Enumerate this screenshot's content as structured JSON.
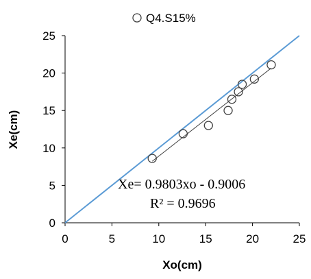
{
  "chart_data": {
    "type": "scatter",
    "xlabel": "Xo(cm)",
    "ylabel": "Xe(cm)",
    "xlim": [
      0,
      25
    ],
    "ylim": [
      0,
      25
    ],
    "x_ticks": [
      "0",
      "5",
      "10",
      "15",
      "20",
      "25"
    ],
    "y_ticks": [
      "0",
      "5",
      "10",
      "15",
      "20",
      "25"
    ],
    "grid": false,
    "legend_position": "top-center",
    "series": [
      {
        "name": "Q4.S15%",
        "marker": "open-circle",
        "color": "#404040",
        "x": [
          9.3,
          12.6,
          15.3,
          17.4,
          17.8,
          18.5,
          18.9,
          20.2,
          22.0
        ],
        "y": [
          8.6,
          11.9,
          13.0,
          15.0,
          16.5,
          17.5,
          18.5,
          19.2,
          21.1
        ]
      }
    ],
    "trendline": {
      "slope": 0.9803,
      "intercept": -0.9006,
      "x_range": [
        9.3,
        22.0
      ],
      "color": "#404040"
    },
    "reference_line": {
      "slope": 1,
      "intercept": 0,
      "color": "#5b9bd5"
    },
    "annotations": [
      "Xe= 0.9803xo - 0.9006",
      "R² = 0.9696"
    ]
  }
}
